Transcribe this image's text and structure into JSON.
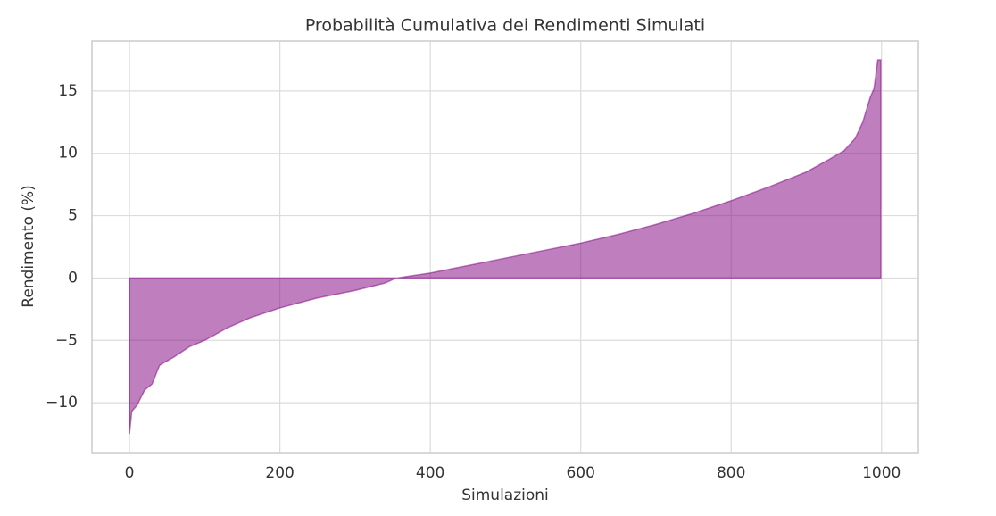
{
  "chart_data": {
    "type": "area",
    "title": "Probabilità Cumulativa dei Rendimenti Simulati",
    "x_label": "Simulazioni",
    "y_label": "Rendimento (%)",
    "x": [
      0,
      3,
      10,
      20,
      30,
      40,
      60,
      80,
      100,
      130,
      160,
      200,
      250,
      300,
      340,
      355,
      400,
      450,
      500,
      550,
      600,
      650,
      700,
      750,
      800,
      850,
      900,
      930,
      950,
      965,
      975,
      985,
      990,
      995,
      999
    ],
    "values": [
      -12.5,
      -10.7,
      -10.2,
      -9.0,
      -8.5,
      -7.0,
      -6.3,
      -5.5,
      -5.0,
      -4.0,
      -3.2,
      -2.4,
      -1.6,
      -1.0,
      -0.4,
      0.0,
      0.4,
      1.0,
      1.6,
      2.2,
      2.8,
      3.5,
      4.3,
      5.2,
      6.2,
      7.3,
      8.5,
      9.5,
      10.2,
      11.2,
      12.5,
      14.5,
      15.2,
      17.5,
      17.5
    ],
    "color": "purple",
    "alpha": 0.5,
    "xlim": [
      -49.95,
      1048.95
    ],
    "ylim": [
      -14,
      19
    ],
    "xticks": [
      0,
      200,
      400,
      600,
      800,
      1000
    ],
    "yticks": [
      {
        "value": -10,
        "label": "−10"
      },
      {
        "value": -5,
        "label": "−5"
      },
      0,
      5,
      10,
      15
    ],
    "grid": true
  }
}
